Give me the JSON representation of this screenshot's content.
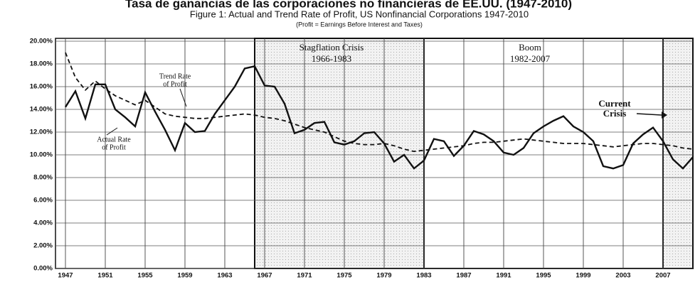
{
  "chart_data": {
    "type": "line",
    "header": "Tasa de ganancias de las corporaciones no financieras de EE.UU. (1947-2010)",
    "title": "Figure 1: Actual and Trend Rate of Profit, US Nonfinancial Corporations 1947-2010",
    "subtitle": "(Profit = Earnings Before Interest and Taxes)",
    "x": [
      1947,
      1948,
      1949,
      1950,
      1951,
      1952,
      1953,
      1954,
      1955,
      1956,
      1957,
      1958,
      1959,
      1960,
      1961,
      1962,
      1963,
      1964,
      1965,
      1966,
      1967,
      1968,
      1969,
      1970,
      1971,
      1972,
      1973,
      1974,
      1975,
      1976,
      1977,
      1978,
      1979,
      1980,
      1981,
      1982,
      1983,
      1984,
      1985,
      1986,
      1987,
      1988,
      1989,
      1990,
      1991,
      1992,
      1993,
      1994,
      1995,
      1996,
      1997,
      1998,
      1999,
      2000,
      2001,
      2002,
      2003,
      2004,
      2005,
      2006,
      2007,
      2008,
      2009,
      2010
    ],
    "series": [
      {
        "name": "Actual Rate of Profit",
        "color": "#111111",
        "dash": false,
        "values": [
          14.2,
          15.6,
          13.2,
          16.2,
          16.2,
          14.0,
          13.3,
          12.5,
          15.5,
          13.8,
          12.2,
          10.4,
          12.8,
          12.0,
          12.1,
          13.6,
          14.8,
          16.0,
          17.6,
          17.8,
          16.1,
          16.0,
          14.5,
          11.9,
          12.2,
          12.8,
          12.9,
          11.1,
          10.9,
          11.2,
          11.9,
          12.0,
          11.0,
          9.4,
          10.0,
          8.8,
          9.5,
          11.4,
          11.2,
          9.9,
          10.8,
          12.1,
          11.8,
          11.2,
          10.2,
          10.0,
          10.6,
          11.9,
          12.5,
          13.0,
          13.4,
          12.5,
          12.0,
          11.2,
          9.0,
          8.8,
          9.1,
          11.0,
          11.8,
          12.4,
          11.2,
          9.6,
          8.8,
          9.8
        ]
      },
      {
        "name": "Trend Rate of Profit",
        "color": "#111111",
        "dash": true,
        "values": [
          19.0,
          16.8,
          15.7,
          16.5,
          15.8,
          15.2,
          14.8,
          14.4,
          14.8,
          14.2,
          13.6,
          13.4,
          13.3,
          13.2,
          13.2,
          13.3,
          13.4,
          13.5,
          13.6,
          13.5,
          13.3,
          13.2,
          13.0,
          12.7,
          12.4,
          12.2,
          12.0,
          11.6,
          11.2,
          11.0,
          10.9,
          10.9,
          11.0,
          10.8,
          10.5,
          10.3,
          10.4,
          10.5,
          10.6,
          10.7,
          10.8,
          11.0,
          11.1,
          11.1,
          11.2,
          11.3,
          11.4,
          11.3,
          11.2,
          11.1,
          11.0,
          11.0,
          11.0,
          10.9,
          10.8,
          10.7,
          10.8,
          10.9,
          11.0,
          11.0,
          10.9,
          10.8,
          10.6,
          10.5
        ]
      }
    ],
    "xlim": [
      1946,
      2010
    ],
    "xticks": [
      1947,
      1951,
      1955,
      1959,
      1963,
      1967,
      1971,
      1975,
      1979,
      1983,
      1987,
      1991,
      1995,
      1999,
      2003,
      2007
    ],
    "ylim": [
      0,
      20
    ],
    "yticks": [
      {
        "value": 0,
        "label": "0.00%"
      },
      {
        "value": 2,
        "label": "2.00%"
      },
      {
        "value": 4,
        "label": "4.00%"
      },
      {
        "value": 6,
        "label": "6.00%"
      },
      {
        "value": 8,
        "label": "8.00%"
      },
      {
        "value": 10,
        "label": "10.00%"
      },
      {
        "value": 12,
        "label": "12.00%"
      },
      {
        "value": 14,
        "label": "14.00%"
      },
      {
        "value": 16,
        "label": "16.00%"
      },
      {
        "value": 18,
        "label": "18.00%"
      },
      {
        "value": 20,
        "label": "20.00%"
      }
    ],
    "grid": true,
    "regions": [
      {
        "lines": [
          "Stagflation Crisis",
          "1966-1983"
        ],
        "start": 1966,
        "end": 1983,
        "shaded": true
      },
      {
        "lines": [
          "Boom",
          "1982-2007"
        ],
        "start": 1983,
        "end": 2007,
        "shaded": false
      },
      {
        "lines": [
          "Current",
          "Crisis"
        ],
        "start": 2007,
        "end": 2010,
        "shaded": true
      }
    ],
    "annotations": [
      {
        "lines": [
          "Trend Rate",
          "of Profit"
        ]
      },
      {
        "lines": [
          "Actual Rate",
          "of Profit"
        ]
      }
    ]
  }
}
